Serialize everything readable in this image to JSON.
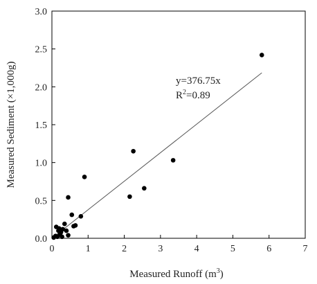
{
  "chart_data": {
    "type": "scatter",
    "xlabel": "Measured Runoff (m",
    "xlabel_sup": "3",
    "xlabel_close": ")",
    "ylabel": "Measured Sediment (×1,000g)",
    "xlim": [
      0,
      7
    ],
    "ylim": [
      0,
      3.0
    ],
    "x_ticks": [
      "0",
      "1",
      "2",
      "3",
      "4",
      "5",
      "6",
      "7"
    ],
    "y_ticks": [
      "0.0",
      "0.5",
      "1.0",
      "1.5",
      "2.0",
      "2.5",
      "3.0"
    ],
    "grid": false,
    "legend": "none",
    "marker_color": "#000000",
    "line_color": "#555555",
    "fit": {
      "equation": "y=376.75x",
      "r2_label": "R",
      "r2_sup": "2",
      "r2_value": "=0.89",
      "slope": 0.37675,
      "x_range": [
        0.05,
        5.8
      ]
    },
    "points": [
      {
        "x": 0.05,
        "y": 0.01
      },
      {
        "x": 0.1,
        "y": 0.03
      },
      {
        "x": 0.12,
        "y": 0.15
      },
      {
        "x": 0.15,
        "y": 0.02
      },
      {
        "x": 0.18,
        "y": 0.1
      },
      {
        "x": 0.2,
        "y": 0.13
      },
      {
        "x": 0.22,
        "y": 0.05
      },
      {
        "x": 0.25,
        "y": 0.08
      },
      {
        "x": 0.28,
        "y": 0.02
      },
      {
        "x": 0.3,
        "y": 0.12
      },
      {
        "x": 0.35,
        "y": 0.19
      },
      {
        "x": 0.4,
        "y": 0.1
      },
      {
        "x": 0.45,
        "y": 0.04
      },
      {
        "x": 0.45,
        "y": 0.54
      },
      {
        "x": 0.55,
        "y": 0.31
      },
      {
        "x": 0.6,
        "y": 0.16
      },
      {
        "x": 0.65,
        "y": 0.17
      },
      {
        "x": 0.8,
        "y": 0.29
      },
      {
        "x": 0.9,
        "y": 0.81
      },
      {
        "x": 2.15,
        "y": 0.55
      },
      {
        "x": 2.25,
        "y": 1.15
      },
      {
        "x": 2.55,
        "y": 0.66
      },
      {
        "x": 3.35,
        "y": 1.03
      },
      {
        "x": 5.8,
        "y": 2.42
      }
    ]
  }
}
